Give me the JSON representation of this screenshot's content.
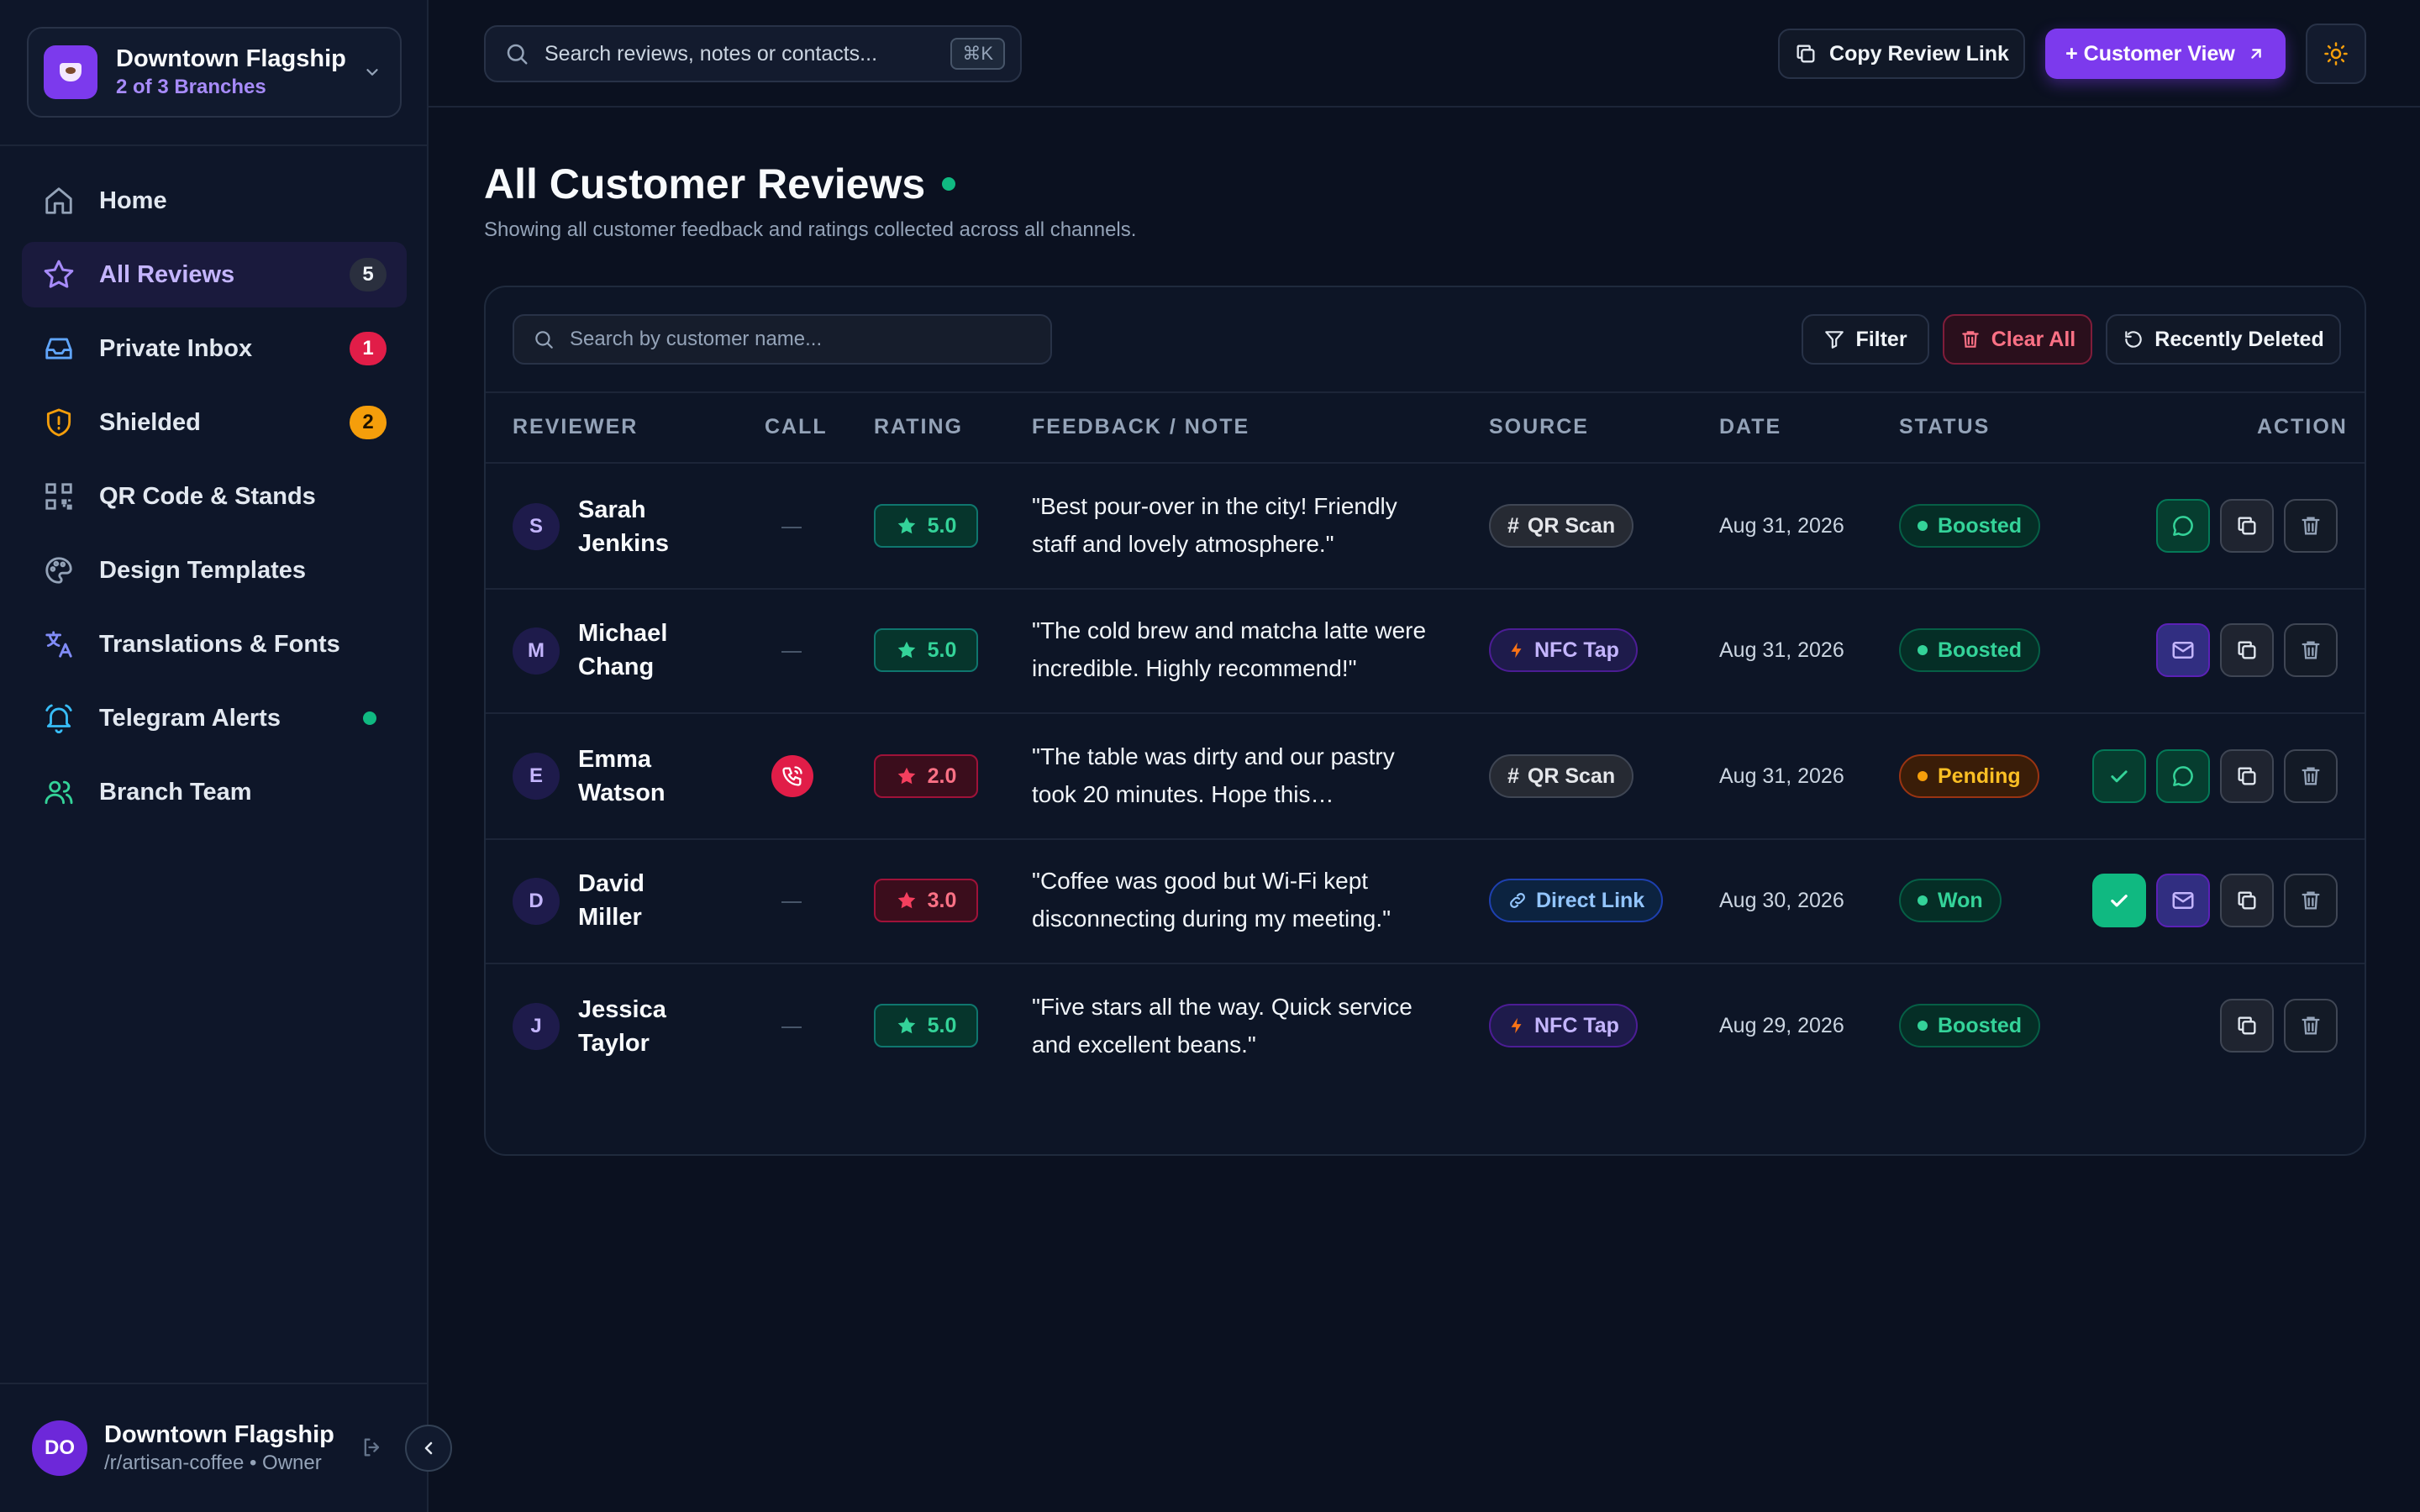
{
  "branch": {
    "name": "Downtown Flagship",
    "sub": "2 of 3 Branches"
  },
  "nav": [
    {
      "label": "Home",
      "icon": "home-icon",
      "badge": ""
    },
    {
      "label": "All Reviews",
      "icon": "star-icon",
      "badge": "5"
    },
    {
      "label": "Private Inbox",
      "icon": "inbox-icon",
      "badge": "1"
    },
    {
      "label": "Shielded",
      "icon": "shield-icon",
      "badge": "2"
    },
    {
      "label": "QR Code & Stands",
      "icon": "qr-code-icon",
      "badge": ""
    },
    {
      "label": "Design Templates",
      "icon": "palette-icon",
      "badge": ""
    },
    {
      "label": "Translations & Fonts",
      "icon": "translate-icon",
      "badge": ""
    },
    {
      "label": "Telegram Alerts",
      "icon": "bell-icon",
      "badge": ""
    },
    {
      "label": "Branch Team",
      "icon": "users-icon",
      "badge": ""
    }
  ],
  "profile": {
    "initials": "DO",
    "name": "Downtown Flagship",
    "sub": "/r/artisan-coffee • Owner"
  },
  "topbar": {
    "search_placeholder": "Search reviews, notes or contacts...",
    "shortcut": "⌘K",
    "copy_link": "Copy Review Link",
    "customer_view": "+ Customer View"
  },
  "page": {
    "title": "All Customer Reviews",
    "subtitle": "Showing all customer feedback and ratings collected across all channels."
  },
  "toolbar": {
    "search_placeholder": "Search by customer name...",
    "filter": "Filter",
    "clear_all": "Clear All",
    "recently_deleted": "Recently Deleted"
  },
  "table": {
    "headers": {
      "reviewer": "REVIEWER",
      "call": "CALL",
      "rating": "RATING",
      "feedback": "FEEDBACK / NOTE",
      "source": "SOURCE",
      "date": "DATE",
      "status": "STATUS",
      "action": "ACTION"
    },
    "call_empty": "—",
    "rows": [
      {
        "initial": "S",
        "name": "Sarah Jenkins",
        "rating": "5.0",
        "feedback": "\"Best pour-over in the city! Friendly staff and lovely atmosphere.\"",
        "source": "QR Scan",
        "date": "Aug 31, 2026",
        "status": "Boosted"
      },
      {
        "initial": "M",
        "name": "Michael Chang",
        "rating": "5.0",
        "feedback": "\"The cold brew and matcha latte were incredible. Highly recommend!\"",
        "source": "NFC Tap",
        "date": "Aug 31, 2026",
        "status": "Boosted"
      },
      {
        "initial": "E",
        "name": "Emma Watson",
        "rating": "2.0",
        "feedback": "\"The table was dirty and our pastry took 20 minutes. Hope this…",
        "source": "QR Scan",
        "date": "Aug 31, 2026",
        "status": "Pending"
      },
      {
        "initial": "D",
        "name": "David Miller",
        "rating": "3.0",
        "feedback": "\"Coffee was good but Wi-Fi kept disconnecting during my meeting.\"",
        "source": "Direct Link",
        "date": "Aug 30, 2026",
        "status": "Won"
      },
      {
        "initial": "J",
        "name": "Jessica Taylor",
        "rating": "5.0",
        "feedback": "\"Five stars all the way. Quick service and excellent beans.\"",
        "source": "NFC Tap",
        "date": "Aug 29, 2026",
        "status": "Boosted"
      }
    ]
  },
  "colors": {
    "accent": "#7c3aed",
    "success": "#10b981",
    "danger": "#e11d48",
    "warning": "#f59e0b",
    "background": "#0b1120"
  }
}
